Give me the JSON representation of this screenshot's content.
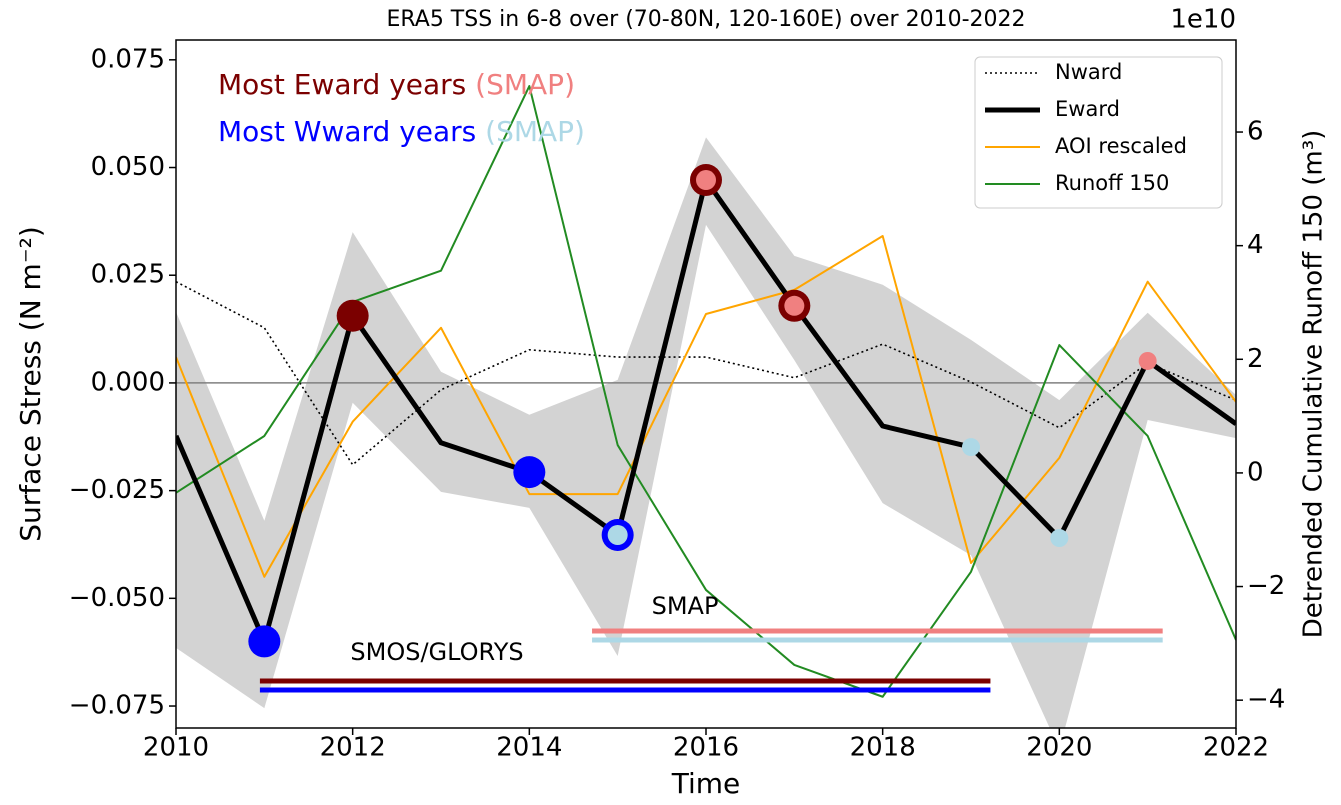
{
  "chart_data": {
    "type": "line",
    "title": "ERA5 TSS in 6-8 over (70-80N, 120-160E) over 2010-2022",
    "x_label": "Time",
    "y_label": "Surface Stress (N m⁻²)",
    "y2_label": "Detrended Cumulative Runoff 150 (m³)",
    "y2_offset_label": "1e10",
    "x": [
      2010,
      2011,
      2012,
      2013,
      2014,
      2015,
      2016,
      2017,
      2018,
      2019,
      2020,
      2021,
      2022
    ],
    "xlim": [
      2010,
      2022
    ],
    "xticks": [
      2010,
      2012,
      2014,
      2016,
      2018,
      2020,
      2022
    ],
    "ylim": [
      -0.0801,
      0.0796
    ],
    "yticks": [
      {
        "value": -0.075,
        "label": "−0.075"
      },
      {
        "value": -0.05,
        "label": "−0.050"
      },
      {
        "value": -0.025,
        "label": "−0.025"
      },
      {
        "value": 0,
        "label": "0.000"
      },
      {
        "value": 0.025,
        "label": "0.025"
      },
      {
        "value": 0.05,
        "label": "0.050"
      },
      {
        "value": 0.075,
        "label": "0.075"
      }
    ],
    "y2lim": [
      -4.49,
      7.62
    ],
    "y2ticks": [
      {
        "value": -4,
        "label": "−4"
      },
      {
        "value": -2,
        "label": "−2"
      },
      0,
      2,
      4,
      6
    ],
    "zero_line": 0,
    "legend_position": "upper right",
    "series": [
      {
        "name": "Nward",
        "color": "#000000",
        "style": "dotted",
        "values": [
          0.0235,
          0.0128,
          -0.019,
          -0.0016,
          0.0077,
          0.006,
          0.006,
          0.0012,
          0.009,
          0.0002,
          -0.0104,
          0.0046,
          -0.004
        ]
      },
      {
        "name": "Eward",
        "color": "#000000",
        "style": "thick",
        "values": [
          -0.0123,
          -0.06,
          0.0156,
          -0.0139,
          -0.0207,
          -0.0353,
          0.0471,
          0.0179,
          -0.01,
          -0.0149,
          -0.036,
          0.0051,
          -0.0095
        ]
      },
      {
        "name": "AOI rescaled",
        "color": "#ffa500",
        "style": "solid",
        "values": [
          0.006,
          -0.045,
          -0.009,
          0.0128,
          -0.0258,
          -0.0258,
          0.016,
          0.0216,
          0.0341,
          -0.0418,
          -0.0174,
          0.0235,
          -0.0044
        ]
      },
      {
        "name": "Runoff 150",
        "color": "#228b22",
        "style": "solid",
        "axis": "y2",
        "values": [
          -0.35,
          0.65,
          3.01,
          3.56,
          6.81,
          0.49,
          -2.06,
          -3.38,
          -3.94,
          -1.74,
          2.25,
          0.65,
          -2.94
        ]
      }
    ],
    "band": {
      "color": "#d3d3d3",
      "upper": [
        0.0165,
        -0.032,
        0.035,
        0.0026,
        -0.0074,
        0.0007,
        0.057,
        0.0295,
        0.0228,
        0.01,
        -0.004,
        0.0163,
        -0.0028
      ],
      "lower": [
        -0.0615,
        -0.0755,
        -0.0046,
        -0.0253,
        -0.029,
        -0.0634,
        0.0367,
        0.0053,
        -0.0279,
        -0.04,
        -0.085,
        -0.0086,
        -0.0128
      ]
    },
    "highlights": {
      "eward_label": "Most Eward years",
      "eward_color": "#7b0000",
      "eward_years": [
        2012,
        2016,
        2017
      ],
      "wward_label": "Most Wward years",
      "wward_color": "#0000ff",
      "wward_years": [
        2011,
        2014,
        2015
      ],
      "smap_label": "(SMAP)",
      "smap_eward_color": "#f08080",
      "smap_wward_color": "#add8e6",
      "smap_eward_years": [
        2016,
        2017,
        2021
      ],
      "smap_wward_years": [
        2015,
        2019,
        2020
      ]
    },
    "periods": [
      {
        "label": "SMOS/GLORYS",
        "start": 2010.95,
        "end": 2019.22,
        "colors": [
          "#7b0000",
          "#0000ff"
        ]
      },
      {
        "label": "SMAP",
        "start": 2014.71,
        "end": 2021.17,
        "colors": [
          "#f08080",
          "#add8e6"
        ]
      }
    ]
  }
}
